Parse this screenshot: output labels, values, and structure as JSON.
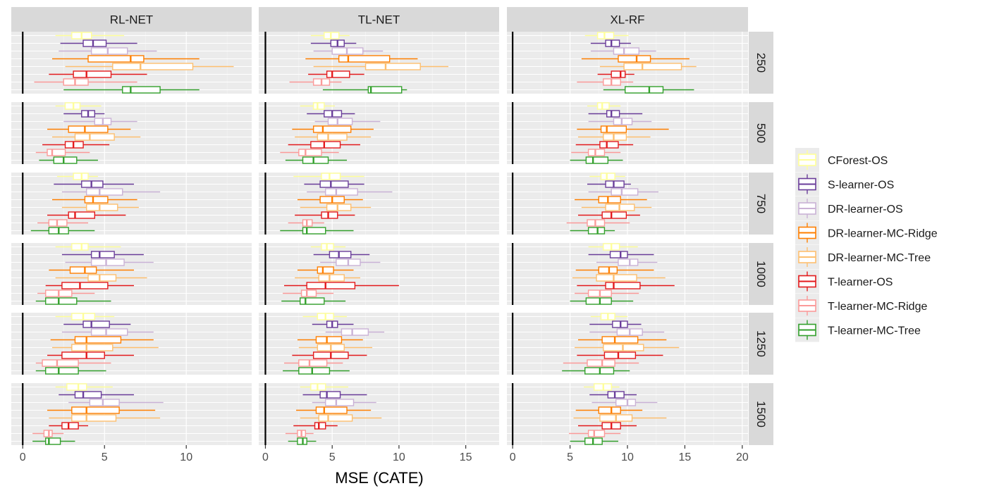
{
  "chart_data": {
    "type": "boxplot",
    "xlabel": "MSE (CATE)",
    "ylabel": "",
    "facet_columns": [
      "RL-NET",
      "TL-NET",
      "XL-RF"
    ],
    "facet_rows": [
      "250",
      "500",
      "750",
      "1000",
      "1250",
      "1500"
    ],
    "xlims": [
      [
        -0.7,
        14.0
      ],
      [
        -0.5,
        17.5
      ],
      [
        -0.5,
        20.5
      ]
    ],
    "x_ticks": [
      [
        0,
        5,
        10
      ],
      [
        0,
        5,
        10,
        15
      ],
      [
        0,
        5,
        10,
        15,
        20
      ]
    ],
    "grid": true,
    "legend_position": "right",
    "reference_line_x": 0,
    "legend": [
      {
        "name": "CForest-OS",
        "color": "#FFFF99"
      },
      {
        "name": "S-learner-OS",
        "color": "#6A3D9A"
      },
      {
        "name": "DR-learner-OS",
        "color": "#CAB2D6"
      },
      {
        "name": "DR-learner-MC-Ridge",
        "color": "#FF7F00"
      },
      {
        "name": "DR-learner-MC-Tree",
        "color": "#FDBF6F"
      },
      {
        "name": "T-learner-OS",
        "color": "#E31A1C"
      },
      {
        "name": "T-learner-MC-Ridge",
        "color": "#FB9A99"
      },
      {
        "name": "T-learner-MC-Tree",
        "color": "#33A02C"
      }
    ],
    "stat_order": [
      "whisker_low",
      "q1",
      "median",
      "q3",
      "whisker_high"
    ],
    "boxes": {
      "RL-NET": {
        "250": [
          [
            2.0,
            3.0,
            3.6,
            4.2,
            6.2
          ],
          [
            2.3,
            3.7,
            4.3,
            5.1,
            7.0
          ],
          [
            2.2,
            4.2,
            5.2,
            6.4,
            8.2
          ],
          [
            1.8,
            4.0,
            6.6,
            7.4,
            10.8
          ],
          [
            2.6,
            5.5,
            7.2,
            10.4,
            12.9
          ],
          [
            1.6,
            3.1,
            3.9,
            5.4,
            7.6
          ],
          [
            0.7,
            2.5,
            3.2,
            4.0,
            7.0
          ],
          [
            2.5,
            6.1,
            6.6,
            8.4,
            10.8
          ]
        ],
        "500": [
          [
            2.0,
            2.6,
            3.1,
            3.5,
            4.8
          ],
          [
            2.5,
            3.6,
            4.0,
            4.4,
            5.0
          ],
          [
            2.5,
            4.4,
            4.9,
            5.4,
            7.0
          ],
          [
            1.5,
            2.8,
            3.8,
            5.2,
            6.6
          ],
          [
            1.8,
            3.2,
            4.1,
            5.6,
            7.2
          ],
          [
            1.2,
            2.6,
            3.1,
            3.7,
            5.3
          ],
          [
            0.8,
            1.5,
            1.8,
            2.6,
            4.1
          ],
          [
            1.0,
            1.9,
            2.5,
            3.3,
            4.6
          ]
        ],
        "750": [
          [
            2.1,
            3.1,
            3.6,
            4.0,
            4.6
          ],
          [
            1.9,
            3.6,
            4.2,
            4.9,
            6.8
          ],
          [
            2.4,
            3.9,
            4.7,
            6.1,
            8.4
          ],
          [
            1.8,
            3.8,
            4.3,
            5.2,
            7.0
          ],
          [
            2.4,
            3.9,
            4.7,
            5.8,
            7.1
          ],
          [
            1.5,
            2.8,
            3.2,
            4.4,
            6.3
          ],
          [
            0.9,
            1.6,
            2.1,
            2.7,
            4.0
          ],
          [
            0.5,
            1.6,
            2.2,
            2.8,
            4.4
          ]
        ],
        "1000": [
          [
            2.0,
            3.0,
            3.6,
            4.0,
            6.0
          ],
          [
            2.4,
            4.2,
            4.7,
            5.6,
            7.4
          ],
          [
            2.6,
            4.2,
            5.1,
            6.2,
            8.0
          ],
          [
            1.6,
            2.9,
            3.8,
            4.5,
            6.8
          ],
          [
            2.0,
            4.0,
            4.7,
            5.7,
            7.6
          ],
          [
            1.4,
            2.4,
            3.5,
            5.2,
            6.8
          ],
          [
            0.9,
            1.4,
            2.2,
            3.0,
            4.4
          ],
          [
            0.8,
            1.4,
            2.2,
            3.3,
            5.4
          ]
        ],
        "1250": [
          [
            2.0,
            3.0,
            3.7,
            4.4,
            5.6
          ],
          [
            2.5,
            3.7,
            4.2,
            5.3,
            6.6
          ],
          [
            2.4,
            4.2,
            5.1,
            6.4,
            8.0
          ],
          [
            1.7,
            3.2,
            3.9,
            6.0,
            8.0
          ],
          [
            1.8,
            3.0,
            3.9,
            5.5,
            8.3
          ],
          [
            1.5,
            2.4,
            3.9,
            5.0,
            6.8
          ],
          [
            0.8,
            1.2,
            2.1,
            3.4,
            5.4
          ],
          [
            0.8,
            1.4,
            2.2,
            3.4,
            5.1
          ]
        ],
        "1500": [
          [
            2.0,
            2.7,
            3.4,
            3.9,
            5.5
          ],
          [
            2.2,
            3.2,
            3.7,
            4.8,
            6.8
          ],
          [
            2.8,
            4.1,
            4.9,
            5.9,
            8.6
          ],
          [
            1.5,
            3.0,
            3.9,
            5.9,
            8.1
          ],
          [
            1.6,
            3.0,
            3.9,
            5.7,
            8.4
          ],
          [
            1.6,
            2.4,
            2.8,
            3.4,
            4.0
          ],
          [
            0.6,
            1.3,
            1.6,
            1.8,
            2.5
          ],
          [
            0.6,
            1.4,
            1.6,
            2.3,
            3.2
          ]
        ]
      },
      "TL-NET": {
        "250": [
          [
            3.4,
            4.4,
            4.9,
            5.5,
            6.3
          ],
          [
            3.4,
            4.9,
            5.4,
            5.9,
            6.8
          ],
          [
            3.6,
            5.0,
            6.1,
            7.3,
            8.8
          ],
          [
            3.0,
            5.5,
            6.2,
            9.3,
            11.4
          ],
          [
            3.6,
            7.5,
            9.0,
            11.6,
            13.7
          ],
          [
            3.2,
            4.6,
            5.0,
            6.3,
            7.4
          ],
          [
            1.8,
            3.6,
            4.2,
            4.8,
            5.7
          ],
          [
            4.3,
            7.7,
            7.9,
            10.2,
            10.6
          ]
        ],
        "500": [
          [
            2.6,
            3.6,
            3.9,
            4.4,
            5.2
          ],
          [
            3.1,
            4.4,
            5.0,
            5.7,
            6.7
          ],
          [
            3.7,
            4.7,
            5.4,
            6.5,
            8.6
          ],
          [
            2.0,
            3.6,
            4.3,
            6.4,
            8.1
          ],
          [
            2.2,
            3.9,
            4.7,
            6.1,
            7.9
          ],
          [
            1.7,
            3.4,
            4.4,
            5.6,
            7.1
          ],
          [
            1.1,
            2.5,
            3.0,
            4.2,
            5.5
          ],
          [
            1.5,
            2.8,
            3.6,
            4.7,
            6.1
          ]
        ],
        "750": [
          [
            2.1,
            4.2,
            4.8,
            5.6,
            7.4
          ],
          [
            2.9,
            4.1,
            4.9,
            6.2,
            7.4
          ],
          [
            3.1,
            4.5,
            5.3,
            6.9,
            9.5
          ],
          [
            2.4,
            4.1,
            5.0,
            5.9,
            7.3
          ],
          [
            2.6,
            4.6,
            5.4,
            6.4,
            7.9
          ],
          [
            2.2,
            4.2,
            4.7,
            5.4,
            6.7
          ],
          [
            1.7,
            2.8,
            3.1,
            3.5,
            4.4
          ],
          [
            1.1,
            2.8,
            3.1,
            4.5,
            6.6
          ]
        ],
        "1000": [
          [
            3.4,
            4.2,
            4.6,
            5.1,
            6.0
          ],
          [
            3.6,
            4.8,
            5.5,
            6.4,
            7.8
          ],
          [
            4.1,
            5.3,
            6.2,
            7.1,
            8.6
          ],
          [
            2.4,
            3.9,
            4.3,
            5.1,
            6.6
          ],
          [
            2.2,
            4.0,
            4.8,
            5.9,
            7.1
          ],
          [
            1.4,
            3.1,
            4.5,
            6.7,
            10.0
          ],
          [
            1.3,
            2.7,
            3.1,
            3.8,
            5.1
          ],
          [
            1.2,
            2.6,
            3.0,
            4.4,
            6.0
          ]
        ],
        "1250": [
          [
            2.8,
            3.9,
            4.5,
            5.1,
            6.1
          ],
          [
            3.5,
            4.6,
            5.0,
            5.4,
            6.6
          ],
          [
            4.5,
            5.7,
            6.5,
            7.7,
            8.9
          ],
          [
            2.4,
            3.8,
            4.6,
            5.7,
            7.3
          ],
          [
            2.5,
            3.9,
            4.9,
            5.9,
            8.0
          ],
          [
            2.0,
            3.6,
            4.9,
            6.2,
            7.6
          ],
          [
            1.4,
            2.5,
            3.3,
            4.6,
            5.8
          ],
          [
            1.3,
            2.5,
            3.5,
            4.8,
            6.3
          ]
        ],
        "1500": [
          [
            2.6,
            3.4,
            3.9,
            4.5,
            6.2
          ],
          [
            2.8,
            4.1,
            4.6,
            5.6,
            7.6
          ],
          [
            3.5,
            4.5,
            5.3,
            6.6,
            8.3
          ],
          [
            2.3,
            3.8,
            4.4,
            6.1,
            7.9
          ],
          [
            2.6,
            4.0,
            4.7,
            6.5,
            8.7
          ],
          [
            2.1,
            3.7,
            4.0,
            4.5,
            5.4
          ],
          [
            1.5,
            2.4,
            2.7,
            3.0,
            3.6
          ],
          [
            1.7,
            2.4,
            2.8,
            3.1,
            3.8
          ]
        ]
      },
      "XL-RF": {
        "250": [
          [
            6.3,
            7.4,
            8.0,
            8.8,
            10.1
          ],
          [
            6.8,
            8.1,
            8.6,
            9.3,
            10.3
          ],
          [
            6.8,
            8.8,
            9.7,
            11.0,
            12.5
          ],
          [
            6.0,
            9.2,
            10.8,
            12.0,
            15.4
          ],
          [
            7.6,
            9.7,
            11.3,
            14.7,
            16.0
          ],
          [
            7.4,
            8.6,
            9.4,
            9.8,
            10.6
          ],
          [
            5.6,
            7.9,
            8.6,
            9.4,
            10.5
          ],
          [
            7.9,
            9.8,
            11.9,
            13.1,
            15.8
          ]
        ],
        "500": [
          [
            6.5,
            7.4,
            7.8,
            8.4,
            9.4
          ],
          [
            6.6,
            8.2,
            8.6,
            9.3,
            11.3
          ],
          [
            6.6,
            8.8,
            9.5,
            10.4,
            12.1
          ],
          [
            5.6,
            7.7,
            8.2,
            9.9,
            13.6
          ],
          [
            5.7,
            7.9,
            8.8,
            9.9,
            12.0
          ],
          [
            5.5,
            7.6,
            8.2,
            9.2,
            10.5
          ],
          [
            5.1,
            6.6,
            7.2,
            8.0,
            9.4
          ],
          [
            5.0,
            6.4,
            7.0,
            8.3,
            9.6
          ]
        ],
        "750": [
          [
            6.7,
            7.7,
            8.2,
            8.9,
            9.8
          ],
          [
            6.5,
            8.1,
            8.8,
            9.7,
            10.3
          ],
          [
            6.6,
            8.6,
            9.5,
            10.9,
            12.7
          ],
          [
            5.4,
            7.5,
            8.3,
            9.4,
            11.7
          ],
          [
            6.0,
            8.1,
            9.3,
            10.6,
            12.1
          ],
          [
            5.7,
            7.8,
            8.6,
            9.9,
            11.1
          ],
          [
            4.7,
            6.5,
            7.2,
            8.0,
            10.2
          ],
          [
            5.0,
            6.6,
            7.4,
            8.0,
            8.9
          ]
        ],
        "1000": [
          [
            6.6,
            7.9,
            8.6,
            9.3,
            10.9
          ],
          [
            6.6,
            8.5,
            9.4,
            10.0,
            12.3
          ],
          [
            7.3,
            9.2,
            10.2,
            10.9,
            12.6
          ],
          [
            5.5,
            7.5,
            8.4,
            9.1,
            12.3
          ],
          [
            5.2,
            7.3,
            8.8,
            10.8,
            13.3
          ],
          [
            5.6,
            8.1,
            8.8,
            11.1,
            14.1
          ],
          [
            5.4,
            6.6,
            7.6,
            8.6,
            11.0
          ],
          [
            5.0,
            6.4,
            7.6,
            8.6,
            10.5
          ]
        ],
        "1250": [
          [
            6.8,
            7.7,
            8.3,
            8.9,
            10.0
          ],
          [
            6.7,
            8.7,
            9.4,
            10.0,
            11.2
          ],
          [
            6.7,
            9.1,
            10.2,
            11.3,
            13.2
          ],
          [
            5.7,
            7.8,
            8.9,
            10.9,
            13.4
          ],
          [
            5.4,
            7.9,
            9.6,
            11.4,
            14.5
          ],
          [
            5.6,
            8.0,
            9.2,
            10.7,
            13.1
          ],
          [
            4.4,
            6.5,
            7.8,
            8.9,
            11.0
          ],
          [
            4.3,
            6.3,
            7.6,
            8.8,
            10.2
          ]
        ],
        "1500": [
          [
            6.2,
            7.1,
            7.9,
            8.6,
            9.3
          ],
          [
            6.7,
            8.3,
            8.9,
            9.7,
            10.8
          ],
          [
            6.9,
            9.0,
            10.0,
            10.7,
            12.6
          ],
          [
            5.5,
            7.5,
            8.6,
            9.4,
            11.3
          ],
          [
            5.3,
            7.6,
            9.0,
            10.4,
            13.4
          ],
          [
            5.7,
            7.8,
            8.6,
            9.4,
            10.8
          ],
          [
            4.9,
            6.6,
            7.1,
            8.0,
            9.4
          ],
          [
            5.0,
            6.3,
            7.0,
            7.8,
            9.2
          ]
        ]
      }
    }
  }
}
